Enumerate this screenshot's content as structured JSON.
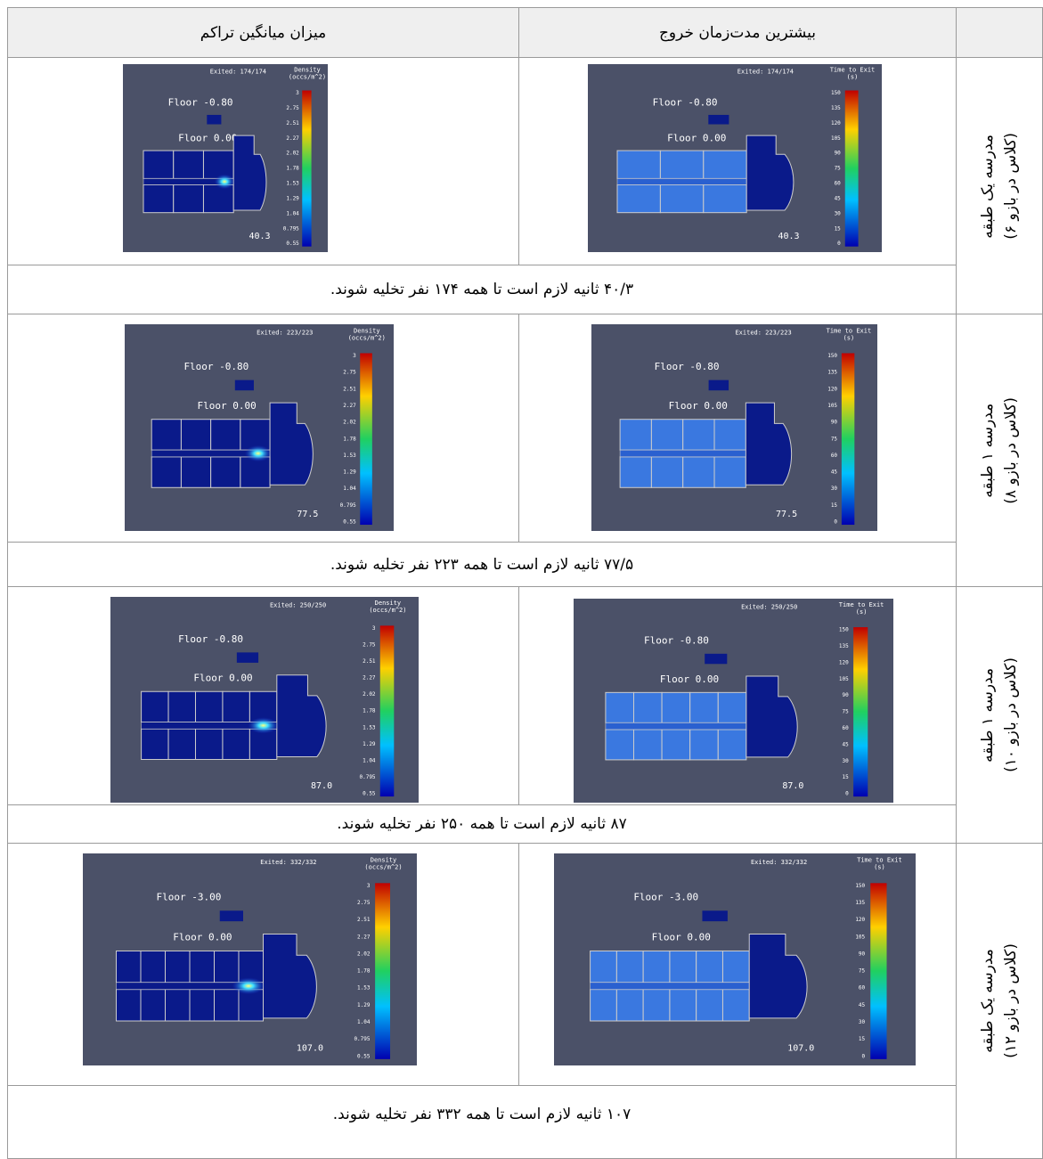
{
  "header": {
    "time_column": "بیشترین مدت‌زمان خروج",
    "density_column": "میزان میانگین تراکم"
  },
  "density_legend": {
    "title": [
      "Density",
      "(occs/m^2)"
    ],
    "ticks": [
      3,
      2.75,
      2.51,
      2.27,
      2.02,
      1.78,
      1.53,
      1.29,
      1.04,
      0.795,
      0.55
    ]
  },
  "time_legend": {
    "title": [
      "Time to Exit",
      "(s)"
    ],
    "ticks": [
      150,
      135,
      120,
      105,
      90,
      75,
      60,
      45,
      30,
      15,
      0
    ]
  },
  "rows": [
    {
      "label": [
        "مدرسه یک طبقه",
        "(۶ کلاس در بازو)"
      ],
      "exited": "Exited: 174/174",
      "floors": [
        "Floor -0.80",
        "Floor 0.00"
      ],
      "clock": "40.3",
      "caption": "۴۰/۳ ثانیه لازم است تا همه ۱۷۴ نفر تخلیه شوند."
    },
    {
      "label": [
        "مدرسه ۱ طبقه",
        "(۸ کلاس در بازو)"
      ],
      "exited": "Exited: 223/223",
      "floors": [
        "Floor -0.80",
        "Floor 0.00"
      ],
      "clock": "77.5",
      "caption": "۷۷/۵ ثانیه لازم است تا همه ۲۲۳ نفر تخلیه شوند."
    },
    {
      "label": [
        "مدرسه ۱ طبقه",
        "(۱۰ کلاس در بازو)"
      ],
      "exited": "Exited: 250/250",
      "floors": [
        "Floor -0.80",
        "Floor 0.00"
      ],
      "clock": "87.0",
      "caption": "۸۷ ثانیه لازم است تا همه ۲۵۰ نفر تخلیه شوند."
    },
    {
      "label": [
        "مدرسه یک طبقه",
        "(۱۲ کلاس در بازو)"
      ],
      "exited": "Exited: 332/332",
      "floors": [
        "Floor -3.00",
        "Floor 0.00"
      ],
      "clock": "107.0",
      "caption": "۱۰۷ ثانیه لازم است تا همه ۳۳۲ نفر تخلیه شوند."
    }
  ]
}
